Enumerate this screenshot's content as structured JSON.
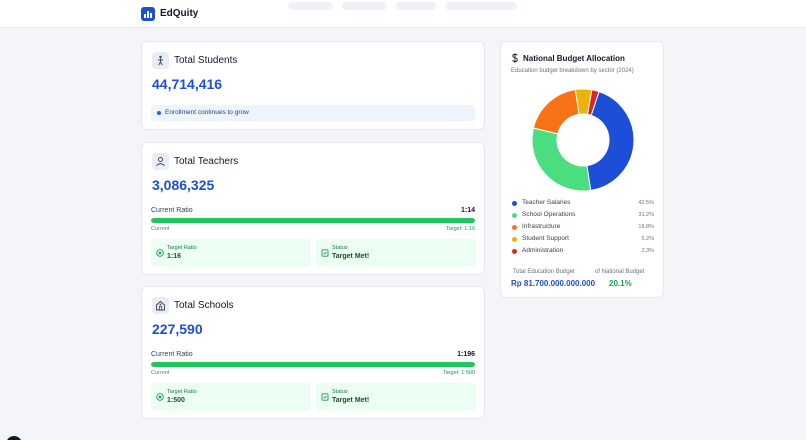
{
  "app": {
    "brand": "EdQuity"
  },
  "students": {
    "title": "Total Students",
    "value": "44,714,416",
    "note": "Enrollment continues to grow"
  },
  "teachers": {
    "title": "Total Teachers",
    "value": "3,086,325",
    "ratio_label": "Current Ratio",
    "ratio_value": "1:14",
    "progress": 1.0,
    "caption_left": "Current",
    "caption_right": "Target: 1:16",
    "target_label": "Target Ratio",
    "target_value": "1:16",
    "status_label": "Status",
    "status_value": "Target Met!"
  },
  "schools": {
    "title": "Total Schools",
    "value": "227,590",
    "ratio_label": "Current Ratio",
    "ratio_value": "1:196",
    "progress": 1.0,
    "caption_left": "Current",
    "caption_right": "Target: 1:500",
    "target_label": "Target Ratio",
    "target_value": "1:500",
    "status_label": "Status",
    "status_value": "Target Met!"
  },
  "budget": {
    "icon": "dollar-icon",
    "title": "National Budget Allocation",
    "subtitle": "Education budget breakdown by sector (2024)",
    "total_label": "Total Education Budget",
    "total_value": "Rp 81.700.000.000.000",
    "share_label": "of National Budget",
    "share_value": "20.1%"
  },
  "chart_data": {
    "type": "pie",
    "categories": [
      "Teacher Salaries",
      "School Operations",
      "Infrastructure",
      "Student Support",
      "Administration"
    ],
    "values": [
      42.5,
      31.2,
      18.8,
      5.2,
      2.3
    ],
    "labels": [
      "42.5%",
      "31.2%",
      "18.8%",
      "5.2%",
      "2.3%"
    ],
    "colors": [
      "#1d4ed8",
      "#4ade80",
      "#f97316",
      "#eab308",
      "#dc2626"
    ],
    "donut": true,
    "legend": "bottom"
  }
}
